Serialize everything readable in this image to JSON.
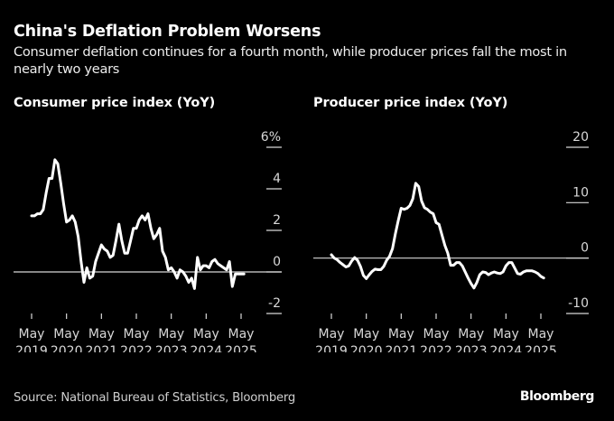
{
  "header": {
    "title": "China's Deflation Problem Worsens",
    "subtitle": "Consumer deflation continues for a fourth month, while producer prices fall the most in nearly two years"
  },
  "footer": {
    "source": "Source: National Bureau of Statistics, Bloomberg",
    "brand": "Bloomberg"
  },
  "colors": {
    "background": "#000000",
    "line": "#ffffff",
    "axis": "#d8d8d8"
  },
  "chart_data": [
    {
      "type": "line",
      "title": "Consumer price index (YoY)",
      "xlabel": "",
      "ylabel": "",
      "x_start": "2019-05",
      "x_frequency": "monthly",
      "x_ticks": [
        {
          "month_index": 0,
          "label": [
            "May",
            "2019"
          ]
        },
        {
          "month_index": 12,
          "label": [
            "May",
            "2020"
          ]
        },
        {
          "month_index": 24,
          "label": [
            "May",
            "2021"
          ]
        },
        {
          "month_index": 36,
          "label": [
            "May",
            "2022"
          ]
        },
        {
          "month_index": 48,
          "label": [
            "May",
            "2023"
          ]
        },
        {
          "month_index": 60,
          "label": [
            "May",
            "2024"
          ]
        },
        {
          "month_index": 72,
          "label": [
            "May",
            "2025"
          ]
        }
      ],
      "y_ticks": [
        {
          "value": 6,
          "label": "6%"
        },
        {
          "value": 4,
          "label": "4"
        },
        {
          "value": 2,
          "label": "2"
        },
        {
          "value": 0,
          "label": "0"
        },
        {
          "value": -2,
          "label": "-2"
        }
      ],
      "ylim": [
        -2,
        6
      ],
      "grid": false,
      "baseline": 0,
      "series": [
        {
          "name": "CPI YoY",
          "values": [
            2.7,
            2.7,
            2.8,
            2.8,
            3.0,
            3.8,
            4.5,
            4.5,
            5.4,
            5.2,
            4.3,
            3.3,
            2.4,
            2.5,
            2.7,
            2.4,
            1.7,
            0.5,
            -0.5,
            0.2,
            -0.3,
            -0.2,
            0.5,
            0.9,
            1.3,
            1.1,
            1.0,
            0.7,
            0.8,
            1.5,
            2.3,
            1.5,
            0.9,
            0.9,
            1.5,
            2.1,
            2.1,
            2.5,
            2.7,
            2.5,
            2.8,
            2.1,
            1.6,
            1.8,
            2.1,
            1.0,
            0.7,
            0.1,
            0.2,
            0.0,
            -0.3,
            0.1,
            0.0,
            -0.2,
            -0.5,
            -0.3,
            -0.8,
            0.7,
            0.1,
            0.3,
            0.3,
            0.2,
            0.5,
            0.6,
            0.4,
            0.3,
            0.2,
            0.1,
            0.5,
            -0.7,
            -0.1,
            -0.1,
            -0.1,
            -0.1
          ]
        }
      ]
    },
    {
      "type": "line",
      "title": "Producer price index (YoY)",
      "xlabel": "",
      "ylabel": "",
      "x_start": "2019-05",
      "x_frequency": "monthly",
      "x_ticks": [
        {
          "month_index": 0,
          "label": [
            "May",
            "2019"
          ]
        },
        {
          "month_index": 12,
          "label": [
            "May",
            "2020"
          ]
        },
        {
          "month_index": 24,
          "label": [
            "May",
            "2021"
          ]
        },
        {
          "month_index": 36,
          "label": [
            "May",
            "2022"
          ]
        },
        {
          "month_index": 48,
          "label": [
            "May",
            "2023"
          ]
        },
        {
          "month_index": 60,
          "label": [
            "May",
            "2024"
          ]
        },
        {
          "month_index": 72,
          "label": [
            "May",
            "2025"
          ]
        }
      ],
      "y_ticks": [
        {
          "value": 20,
          "label": "20"
        },
        {
          "value": 10,
          "label": "10"
        },
        {
          "value": 0,
          "label": "0"
        },
        {
          "value": -10,
          "label": "-10"
        }
      ],
      "ylim": [
        -10,
        20
      ],
      "grid": false,
      "baseline": 0,
      "series": [
        {
          "name": "PPI YoY",
          "values": [
            0.6,
            0.0,
            -0.3,
            -0.8,
            -1.2,
            -1.6,
            -1.4,
            -0.5,
            0.1,
            -0.4,
            -1.5,
            -3.1,
            -3.7,
            -3.0,
            -2.4,
            -2.0,
            -2.1,
            -2.1,
            -1.5,
            -0.4,
            0.3,
            1.7,
            4.4,
            6.8,
            9.0,
            8.8,
            9.0,
            9.5,
            10.7,
            13.5,
            12.9,
            10.3,
            9.1,
            8.8,
            8.3,
            8.0,
            6.4,
            6.1,
            4.2,
            2.3,
            0.9,
            -1.3,
            -1.3,
            -0.8,
            -0.8,
            -1.4,
            -2.5,
            -3.6,
            -4.6,
            -5.4,
            -4.4,
            -3.0,
            -2.5,
            -2.6,
            -3.0,
            -2.7,
            -2.5,
            -2.7,
            -2.8,
            -2.5,
            -1.4,
            -0.8,
            -0.8,
            -1.8,
            -2.8,
            -2.9,
            -2.5,
            -2.3,
            -2.3,
            -2.3,
            -2.5,
            -2.8,
            -3.3,
            -3.6
          ]
        }
      ]
    }
  ]
}
